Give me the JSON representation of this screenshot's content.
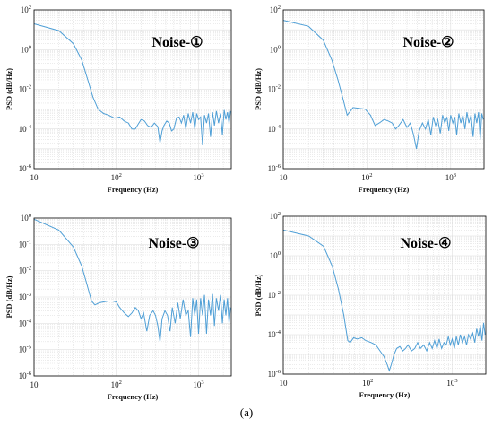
{
  "caption": "(a)",
  "style": {
    "line_color": "#4f9fd6",
    "grid_color": "#d9d9d9",
    "axis_color": "#000000"
  },
  "chart_data": [
    {
      "type": "line",
      "title": "Noise-①",
      "xlabel": "Frequency (Hz)",
      "ylabel": "PSD (dB/Hz)",
      "xscale": "log",
      "yscale": "log",
      "xlim": [
        10,
        2500
      ],
      "ylim_exp": [
        -6,
        2
      ],
      "x_ticks": [
        "10",
        "10^2",
        "10^3"
      ],
      "y_ticks": [
        "10^-6",
        "10^-4",
        "10^-2",
        "10^0",
        "10^2"
      ],
      "grid": true,
      "series": [
        {
          "values": [
            [
              10,
              20
            ],
            [
              20,
              9
            ],
            [
              30,
              2
            ],
            [
              38,
              0.3
            ],
            [
              45,
              0.03
            ],
            [
              52,
              0.004
            ],
            [
              60,
              0.001
            ],
            [
              70,
              0.0006
            ],
            [
              80,
              0.0005
            ],
            [
              95,
              0.00035
            ],
            [
              110,
              0.0004
            ],
            [
              125,
              0.00025
            ],
            [
              140,
              0.0002
            ],
            [
              155,
              0.0001
            ],
            [
              170,
              0.0001
            ],
            [
              185,
              0.00018
            ],
            [
              200,
              0.0003
            ],
            [
              220,
              0.00025
            ],
            [
              240,
              0.00015
            ],
            [
              265,
              0.00012
            ],
            [
              290,
              0.0002
            ],
            [
              320,
              0.00013
            ],
            [
              340,
              2e-05
            ],
            [
              360,
              8e-05
            ],
            [
              380,
              0.00015
            ],
            [
              410,
              0.00025
            ],
            [
              440,
              0.0002
            ],
            [
              470,
              8e-05
            ],
            [
              500,
              0.0001
            ],
            [
              540,
              0.00035
            ],
            [
              580,
              0.0004
            ],
            [
              620,
              0.0002
            ],
            [
              660,
              0.0005
            ],
            [
              700,
              0.0001
            ],
            [
              750,
              0.0006
            ],
            [
              800,
              0.0002
            ],
            [
              850,
              0.0007
            ],
            [
              900,
              0.0001
            ],
            [
              950,
              0.0006
            ],
            [
              1000,
              0.0003
            ],
            [
              1060,
              0.0004
            ],
            [
              1120,
              1.5e-05
            ],
            [
              1180,
              0.0005
            ],
            [
              1250,
              0.0002
            ],
            [
              1320,
              0.0006
            ],
            [
              1400,
              4e-05
            ],
            [
              1480,
              0.0007
            ],
            [
              1560,
              0.00015
            ],
            [
              1650,
              0.0008
            ],
            [
              1750,
              0.0002
            ],
            [
              1850,
              0.0006
            ],
            [
              1950,
              5e-05
            ],
            [
              2050,
              0.0009
            ],
            [
              2150,
              0.0003
            ],
            [
              2250,
              0.0007
            ],
            [
              2350,
              0.0002
            ],
            [
              2450,
              0.0008
            ]
          ]
        }
      ]
    },
    {
      "type": "line",
      "title": "Noise-②",
      "xlabel": "Frequency (Hz)",
      "ylabel": "PSD (dB/Hz)",
      "xscale": "log",
      "yscale": "log",
      "xlim": [
        10,
        2500
      ],
      "ylim_exp": [
        -6,
        2
      ],
      "x_ticks": [
        "10",
        "10^2",
        "10^3"
      ],
      "y_ticks": [
        "10^-6",
        "10^-4",
        "10^-2",
        "10^0",
        "10^2"
      ],
      "grid": true,
      "series": [
        {
          "values": [
            [
              10,
              30
            ],
            [
              20,
              15
            ],
            [
              30,
              3
            ],
            [
              38,
              0.3
            ],
            [
              45,
              0.03
            ],
            [
              52,
              0.003
            ],
            [
              58,
              0.0005
            ],
            [
              62,
              0.0007
            ],
            [
              68,
              0.0012
            ],
            [
              80,
              0.0011
            ],
            [
              95,
              0.001
            ],
            [
              110,
              0.0005
            ],
            [
              125,
              0.00015
            ],
            [
              140,
              0.0002
            ],
            [
              160,
              0.0003
            ],
            [
              180,
              0.00025
            ],
            [
              200,
              0.0002
            ],
            [
              220,
              0.0001
            ],
            [
              240,
              0.00015
            ],
            [
              270,
              0.0003
            ],
            [
              300,
              0.00012
            ],
            [
              330,
              0.0002
            ],
            [
              360,
              5e-05
            ],
            [
              390,
              1e-05
            ],
            [
              420,
              8e-05
            ],
            [
              460,
              0.0002
            ],
            [
              500,
              0.0001
            ],
            [
              540,
              0.0003
            ],
            [
              580,
              5e-05
            ],
            [
              620,
              0.0004
            ],
            [
              660,
              0.00015
            ],
            [
              700,
              0.0003
            ],
            [
              750,
              6e-05
            ],
            [
              800,
              0.0005
            ],
            [
              850,
              0.0002
            ],
            [
              900,
              0.0004
            ],
            [
              950,
              8e-05
            ],
            [
              1000,
              0.0005
            ],
            [
              1060,
              0.0002
            ],
            [
              1120,
              0.0004
            ],
            [
              1180,
              5e-05
            ],
            [
              1250,
              0.0006
            ],
            [
              1320,
              0.0002
            ],
            [
              1400,
              0.0005
            ],
            [
              1480,
              0.0001
            ],
            [
              1560,
              0.0007
            ],
            [
              1650,
              0.0002
            ],
            [
              1750,
              0.0005
            ],
            [
              1850,
              4e-05
            ],
            [
              1950,
              0.0006
            ],
            [
              2050,
              0.0002
            ],
            [
              2150,
              0.0007
            ],
            [
              2250,
              3e-05
            ],
            [
              2350,
              0.0006
            ],
            [
              2450,
              0.0003
            ]
          ]
        }
      ]
    },
    {
      "type": "line",
      "title": "Noise-③",
      "xlabel": "Frequency (Hz)",
      "ylabel": "PSD (dB/Hz)",
      "xscale": "log",
      "yscale": "log",
      "xlim": [
        10,
        2500
      ],
      "ylim_exp": [
        -6,
        0
      ],
      "x_ticks": [
        "10",
        "10^2",
        "10^3"
      ],
      "y_ticks": [
        "10^-6",
        "10^-5",
        "10^-4",
        "10^-3",
        "10^-2",
        "10^-1",
        "10^0"
      ],
      "grid": true,
      "series": [
        {
          "values": [
            [
              10,
              0.9
            ],
            [
              20,
              0.35
            ],
            [
              30,
              0.08
            ],
            [
              38,
              0.015
            ],
            [
              44,
              0.003
            ],
            [
              50,
              0.0007
            ],
            [
              55,
              0.0005
            ],
            [
              62,
              0.0006
            ],
            [
              70,
              0.00065
            ],
            [
              80,
              0.0007
            ],
            [
              90,
              0.0007
            ],
            [
              100,
              0.00065
            ],
            [
              110,
              0.0004
            ],
            [
              125,
              0.00025
            ],
            [
              140,
              0.00018
            ],
            [
              155,
              0.00025
            ],
            [
              170,
              0.0004
            ],
            [
              185,
              0.0003
            ],
            [
              200,
              0.00015
            ],
            [
              215,
              0.00025
            ],
            [
              235,
              5e-05
            ],
            [
              255,
              0.0002
            ],
            [
              280,
              0.0003
            ],
            [
              300,
              0.0002
            ],
            [
              320,
              8e-05
            ],
            [
              340,
              2e-05
            ],
            [
              360,
              0.00015
            ],
            [
              390,
              0.0003
            ],
            [
              420,
              0.0002
            ],
            [
              450,
              5e-05
            ],
            [
              480,
              0.0004
            ],
            [
              520,
              0.0001
            ],
            [
              560,
              0.0006
            ],
            [
              600,
              0.00015
            ],
            [
              650,
              0.0008
            ],
            [
              700,
              0.0002
            ],
            [
              750,
              0.0003
            ],
            [
              800,
              3e-05
            ],
            [
              850,
              0.0009
            ],
            [
              900,
              0.0002
            ],
            [
              950,
              0.0008
            ],
            [
              1000,
              4e-05
            ],
            [
              1060,
              0.0009
            ],
            [
              1120,
              0.0002
            ],
            [
              1180,
              0.0012
            ],
            [
              1250,
              4e-05
            ],
            [
              1320,
              0.0008
            ],
            [
              1400,
              0.0002
            ],
            [
              1480,
              0.0013
            ],
            [
              1560,
              8e-05
            ],
            [
              1650,
              0.0009
            ],
            [
              1750,
              0.0003
            ],
            [
              1850,
              0.0012
            ],
            [
              1950,
              0.0001
            ],
            [
              2050,
              0.0008
            ],
            [
              2150,
              0.0002
            ],
            [
              2250,
              0.0009
            ],
            [
              2350,
              0.0001
            ],
            [
              2450,
              0.0004
            ]
          ]
        }
      ]
    },
    {
      "type": "line",
      "title": "Noise-④",
      "xlabel": "Frequency (Hz)",
      "ylabel": "PSD (dB/Hz)",
      "xscale": "log",
      "yscale": "log",
      "xlim": [
        10,
        2500
      ],
      "ylim_exp": [
        -6,
        2
      ],
      "x_ticks": [
        "10",
        "10^2",
        "10^3"
      ],
      "y_ticks": [
        "10^-6",
        "10^-4",
        "10^-2",
        "10^0",
        "10^2"
      ],
      "grid": true,
      "series": [
        {
          "values": [
            [
              10,
              20
            ],
            [
              20,
              10
            ],
            [
              30,
              3
            ],
            [
              38,
              0.3
            ],
            [
              45,
              0.02
            ],
            [
              52,
              0.001
            ],
            [
              58,
              5e-05
            ],
            [
              62,
              4e-05
            ],
            [
              68,
              7e-05
            ],
            [
              75,
              6e-05
            ],
            [
              85,
              7e-05
            ],
            [
              95,
              5e-05
            ],
            [
              110,
              4e-05
            ],
            [
              125,
              3e-05
            ],
            [
              140,
              1.5e-05
            ],
            [
              155,
              8e-06
            ],
            [
              170,
              3e-06
            ],
            [
              180,
              1.5e-06
            ],
            [
              190,
              3e-06
            ],
            [
              205,
              1e-05
            ],
            [
              220,
              2e-05
            ],
            [
              240,
              2.5e-05
            ],
            [
              260,
              1.5e-05
            ],
            [
              280,
              2e-05
            ],
            [
              300,
              3e-05
            ],
            [
              330,
              1.5e-05
            ],
            [
              360,
              2e-05
            ],
            [
              390,
              4e-05
            ],
            [
              420,
              2e-05
            ],
            [
              460,
              3e-05
            ],
            [
              500,
              1.5e-05
            ],
            [
              540,
              4e-05
            ],
            [
              580,
              2e-05
            ],
            [
              620,
              5e-05
            ],
            [
              660,
              2e-05
            ],
            [
              700,
              6e-05
            ],
            [
              750,
              2e-05
            ],
            [
              800,
              4e-05
            ],
            [
              850,
              3e-05
            ],
            [
              900,
              8e-05
            ],
            [
              950,
              3e-05
            ],
            [
              1000,
              6e-05
            ],
            [
              1060,
              2e-05
            ],
            [
              1120,
              8e-05
            ],
            [
              1180,
              3e-05
            ],
            [
              1250,
              0.0001
            ],
            [
              1320,
              4e-05
            ],
            [
              1400,
              8e-05
            ],
            [
              1480,
              3e-05
            ],
            [
              1560,
              0.0001
            ],
            [
              1650,
              6e-05
            ],
            [
              1750,
              0.00012
            ],
            [
              1850,
              4e-05
            ],
            [
              1950,
              0.0002
            ],
            [
              2050,
              8e-05
            ],
            [
              2150,
              0.0003
            ],
            [
              2250,
              5e-05
            ],
            [
              2350,
              0.0004
            ],
            [
              2450,
              0.0001
            ]
          ]
        }
      ]
    }
  ]
}
